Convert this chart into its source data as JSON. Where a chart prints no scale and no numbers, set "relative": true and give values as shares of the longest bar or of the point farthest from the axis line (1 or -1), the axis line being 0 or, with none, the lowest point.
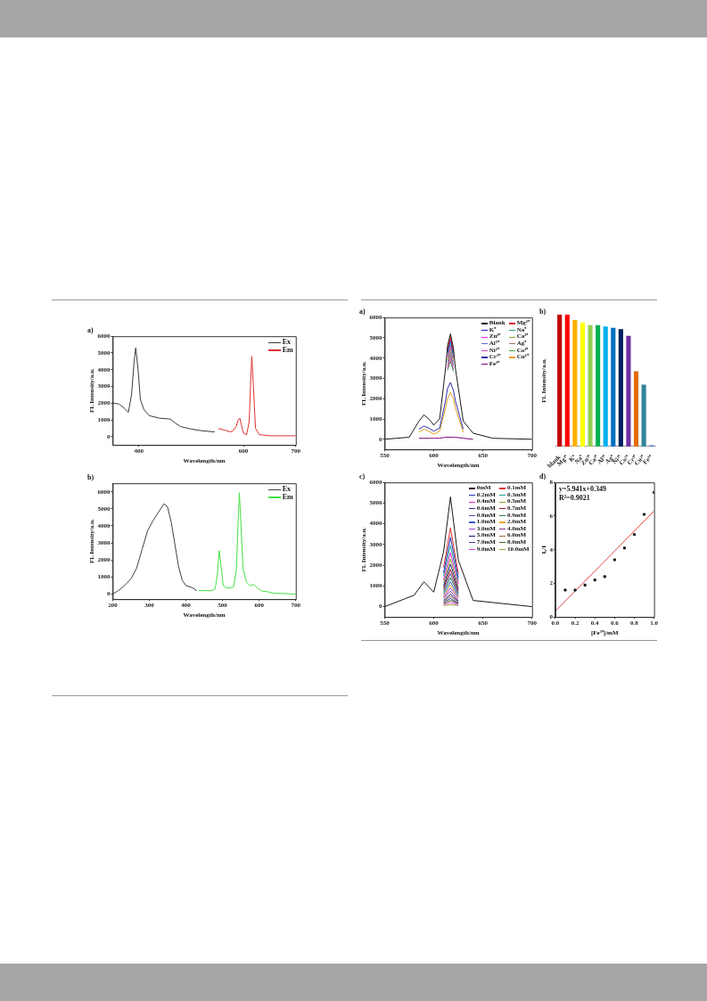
{
  "chart_data": [
    {
      "type": "line",
      "title": "a)",
      "xlabel": "Wavelength/nm",
      "ylabel": "FL Intensity/a.u.",
      "xlim": [
        350,
        700
      ],
      "xticks": [
        400,
        600,
        700
      ],
      "ylim": [
        -500,
        6000
      ],
      "yticks": [
        0,
        1000,
        2000,
        3000,
        4000,
        5000,
        6000
      ],
      "legend": "top right",
      "marker": "none",
      "series": [
        {
          "name": "Ex",
          "color": "#3a3a3a",
          "x": [
            350,
            362,
            372,
            380,
            386,
            391,
            394,
            398,
            403,
            410,
            420,
            440,
            460,
            470,
            480,
            500,
            520,
            545
          ],
          "values": [
            2000,
            1950,
            1700,
            1450,
            2500,
            4500,
            5300,
            4200,
            2200,
            1600,
            1250,
            1100,
            1050,
            800,
            600,
            450,
            350,
            280
          ]
        },
        {
          "name": "Em",
          "color": "#e03030",
          "x": [
            552,
            565,
            575,
            580,
            586,
            590,
            593,
            596,
            600,
            606,
            611,
            614,
            616,
            619,
            623,
            630,
            650,
            700
          ],
          "values": [
            480,
            380,
            280,
            350,
            600,
            1000,
            1100,
            700,
            200,
            120,
            900,
            3500,
            4800,
            3000,
            500,
            120,
            50,
            50
          ]
        }
      ]
    },
    {
      "type": "line",
      "title": "b)",
      "xlabel": "Wavelength/nm",
      "ylabel": "FL Intensity/a.u.",
      "xlim": [
        200,
        700
      ],
      "xticks": [
        200,
        300,
        400,
        500,
        600,
        700
      ],
      "ylim": [
        -300,
        6500
      ],
      "yticks": [
        0,
        1000,
        2000,
        3000,
        4000,
        5000,
        6000
      ],
      "legend": "top right",
      "marker": "none",
      "series": [
        {
          "name": "Ex",
          "color": "#404040",
          "x": [
            200,
            215,
            230,
            250,
            265,
            280,
            295,
            310,
            325,
            340,
            350,
            360,
            370,
            380,
            390,
            400,
            415,
            430
          ],
          "values": [
            0,
            200,
            450,
            900,
            1500,
            2600,
            3700,
            4300,
            4800,
            5300,
            5100,
            4200,
            2900,
            1600,
            800,
            500,
            400,
            200
          ]
        },
        {
          "name": "Em",
          "color": "#44e044",
          "x": [
            435,
            470,
            480,
            486,
            491,
            496,
            502,
            510,
            530,
            538,
            543,
            546,
            550,
            556,
            565,
            575,
            585,
            595,
            610,
            620,
            640,
            700
          ],
          "values": [
            200,
            200,
            300,
            1200,
            2550,
            1600,
            500,
            350,
            400,
            1500,
            4500,
            5950,
            4200,
            1500,
            700,
            500,
            550,
            350,
            150,
            150,
            50,
            0
          ]
        }
      ]
    },
    {
      "type": "line",
      "title": "a)",
      "xlabel": "Wavelength/nm",
      "ylabel": "FL Intensity/a.u.",
      "xlim": [
        550,
        700
      ],
      "xticks": [
        550,
        600,
        650,
        700
      ],
      "ylim": [
        -500,
        6000
      ],
      "yticks": [
        0,
        1000,
        2000,
        3000,
        4000,
        5000,
        6000
      ],
      "legend": "top right",
      "marker": "none",
      "x": [
        550,
        575,
        585,
        590,
        595,
        600,
        606,
        612,
        614,
        617,
        620,
        622,
        630,
        640,
        660,
        700
      ],
      "series": [
        {
          "name": "Blank",
          "color": "#1a1a1a",
          "values": [
            0,
            100,
            900,
            1200,
            1000,
            700,
            1000,
            3500,
            4600,
            5200,
            4500,
            3500,
            900,
            300,
            50,
            0
          ]
        },
        {
          "name": "Mg²⁺",
          "color": "#e02020",
          "values": [
            null,
            null,
            null,
            null,
            null,
            null,
            null,
            null,
            4450,
            5050,
            4350,
            null,
            null,
            null,
            null,
            null
          ]
        },
        {
          "name": "K⁺",
          "color": "#2020c0",
          "values": [
            null,
            null,
            null,
            null,
            null,
            null,
            null,
            null,
            4300,
            4900,
            4250,
            null,
            null,
            null,
            null,
            null
          ]
        },
        {
          "name": "Na⁺",
          "color": "#20a090",
          "values": [
            null,
            null,
            null,
            null,
            null,
            null,
            null,
            null,
            4200,
            4750,
            4100,
            null,
            null,
            null,
            null,
            null
          ]
        },
        {
          "name": "Zn²⁺",
          "color": "#e020e0",
          "values": [
            null,
            null,
            null,
            null,
            null,
            null,
            null,
            null,
            4050,
            4600,
            4000,
            null,
            null,
            null,
            null,
            null
          ]
        },
        {
          "name": "Ca²⁺",
          "color": "#90a020",
          "values": [
            null,
            null,
            null,
            null,
            null,
            null,
            null,
            null,
            3900,
            4450,
            3850,
            null,
            null,
            null,
            null,
            null
          ]
        },
        {
          "name": "Al³⁺",
          "color": "#7070c8",
          "values": [
            null,
            null,
            null,
            null,
            null,
            null,
            null,
            null,
            3800,
            4300,
            3700,
            null,
            null,
            null,
            null,
            null
          ]
        },
        {
          "name": "Ag⁺",
          "color": "#a07070",
          "values": [
            null,
            null,
            null,
            null,
            null,
            null,
            null,
            null,
            3650,
            4150,
            3600,
            null,
            null,
            null,
            null,
            null
          ]
        },
        {
          "name": "Ni²⁺",
          "color": "#d040c0",
          "values": [
            null,
            null,
            null,
            null,
            null,
            null,
            null,
            null,
            3500,
            4000,
            3450,
            null,
            null,
            null,
            null,
            null
          ]
        },
        {
          "name": "Co²⁺",
          "color": "#30a040",
          "values": [
            null,
            null,
            null,
            null,
            null,
            null,
            null,
            null,
            3400,
            3850,
            3350,
            null,
            null,
            null,
            null,
            null
          ]
        },
        {
          "name": "Cr³⁺",
          "color": "#3030b0",
          "values": [
            null,
            null,
            500,
            650,
            550,
            400,
            550,
            1900,
            2500,
            2800,
            2400,
            1900,
            500,
            null,
            null,
            null
          ]
        },
        {
          "name": "Cu²⁺",
          "color": "#e0a020",
          "values": [
            null,
            null,
            350,
            500,
            400,
            250,
            400,
            1550,
            2000,
            2300,
            2000,
            1550,
            350,
            null,
            null,
            null
          ]
        },
        {
          "name": "Fe³⁺",
          "color": "#800080",
          "values": [
            null,
            null,
            50,
            50,
            50,
            50,
            50,
            100,
            100,
            100,
            100,
            100,
            50,
            0,
            null,
            null
          ]
        }
      ]
    },
    {
      "type": "bar",
      "title": "b)",
      "ylabel": "FL Intensity/a.u.",
      "relative": true,
      "categories": [
        "blank",
        "Mg²⁺",
        "K⁺",
        "Na⁺",
        "Zn²⁺",
        "Ca²⁺",
        "Al³⁺",
        "Ag⁺",
        "Ni²⁺",
        "Co²⁺",
        "Cr³⁺",
        "Cu²⁺",
        "Fe³⁺"
      ],
      "values": [
        1,
        1,
        0.96,
        0.94,
        0.92,
        0.92,
        0.91,
        0.9,
        0.89,
        0.84,
        0.57,
        0.47,
        0.01
      ],
      "colors": [
        "#c00000",
        "#ff0000",
        "#ffb000",
        "#ffff00",
        "#92d050",
        "#00b050",
        "#00b0f0",
        "#0070c0",
        "#002060",
        "#7030a0",
        "#e46c0a",
        "#31859c",
        "#4f81bd"
      ]
    },
    {
      "type": "line",
      "title": "c)",
      "xlabel": "Wavelength/nm",
      "ylabel": "FL Intensity/a.u.",
      "xlim": [
        550,
        700
      ],
      "xticks": [
        550,
        600,
        650,
        700
      ],
      "ylim": [
        -500,
        6000
      ],
      "yticks": [
        0,
        1000,
        2000,
        3000,
        4000,
        5000,
        6000
      ],
      "legend": "top right",
      "marker": "none",
      "x": [
        550,
        580,
        590,
        600,
        610,
        617,
        625,
        640,
        700
      ],
      "series": [
        {
          "name": "0mM",
          "color": "#1a1a1a",
          "values": [
            0,
            550,
            1200,
            700,
            2650,
            5300,
            2250,
            300,
            0
          ]
        },
        {
          "name": "0.1mM",
          "color": "#e03030",
          "values": [
            null,
            null,
            null,
            null,
            1900,
            3800,
            1600,
            null,
            null
          ]
        },
        {
          "name": "0.2mM",
          "color": "#2030c0",
          "values": [
            null,
            null,
            null,
            null,
            1650,
            3350,
            1400,
            null,
            null
          ]
        },
        {
          "name": "0.3mM",
          "color": "#20a090",
          "values": [
            null,
            null,
            null,
            null,
            1500,
            2950,
            1250,
            null,
            null
          ]
        },
        {
          "name": "0.4mM",
          "color": "#e020e0",
          "values": [
            null,
            null,
            null,
            null,
            1300,
            2600,
            1100,
            null,
            null
          ]
        },
        {
          "name": "0.5mM",
          "color": "#90a020",
          "values": [
            null,
            null,
            null,
            null,
            1150,
            2300,
            950,
            null,
            null
          ]
        },
        {
          "name": "0.6mM",
          "color": "#202090",
          "values": [
            null,
            null,
            null,
            null,
            1000,
            2050,
            850,
            null,
            null
          ]
        },
        {
          "name": "0.7mM",
          "color": "#902020",
          "values": [
            null,
            null,
            null,
            null,
            900,
            1800,
            750,
            null,
            null
          ]
        },
        {
          "name": "0.8mM",
          "color": "#7040a0",
          "values": [
            null,
            null,
            null,
            null,
            800,
            1600,
            650,
            null,
            null
          ]
        },
        {
          "name": "0.9mM",
          "color": "#208040",
          "values": [
            null,
            null,
            null,
            null,
            700,
            1400,
            600,
            null,
            null
          ]
        },
        {
          "name": "1.0mM",
          "color": "#3060d0",
          "values": [
            null,
            null,
            null,
            null,
            600,
            1200,
            500,
            null,
            null
          ]
        },
        {
          "name": "2.0mM",
          "color": "#f0a030",
          "values": [
            null,
            null,
            null,
            null,
            500,
            1050,
            450,
            null,
            null
          ]
        },
        {
          "name": "3.0mM",
          "color": "#a040e0",
          "values": [
            null,
            null,
            null,
            null,
            450,
            900,
            400,
            null,
            null
          ]
        },
        {
          "name": "4.0mM",
          "color": "#803090",
          "values": [
            null,
            null,
            null,
            null,
            400,
            750,
            300,
            null,
            null
          ]
        },
        {
          "name": "5.0mM",
          "color": "#101060",
          "values": [
            null,
            null,
            null,
            null,
            300,
            600,
            250,
            null,
            null
          ]
        },
        {
          "name": "6.0mM",
          "color": "#a06040",
          "values": [
            null,
            null,
            null,
            null,
            250,
            500,
            200,
            null,
            null
          ]
        },
        {
          "name": "7.0mM",
          "color": "#3040a0",
          "values": [
            null,
            null,
            null,
            null,
            200,
            400,
            150,
            null,
            null
          ]
        },
        {
          "name": "8.0mM",
          "color": "#406020",
          "values": [
            null,
            null,
            null,
            null,
            150,
            300,
            150,
            null,
            null
          ]
        },
        {
          "name": "9.0mM",
          "color": "#e040e0",
          "values": [
            null,
            null,
            null,
            null,
            100,
            200,
            100,
            null,
            null
          ]
        },
        {
          "name": "10.0mM",
          "color": "#a0a030",
          "values": [
            null,
            null,
            null,
            null,
            50,
            100,
            50,
            null,
            null
          ]
        }
      ]
    },
    {
      "type": "scatter",
      "title": "d)",
      "xlabel": "[Fe³⁺]/mM",
      "ylabel": "I₀/I",
      "xlim": [
        0,
        1
      ],
      "xticks": [
        {
          "value": 0,
          "label": "0.0"
        },
        {
          "value": 0.2,
          "label": "0.2"
        },
        {
          "value": 0.4,
          "label": "0.4"
        },
        {
          "value": 0.6,
          "label": "0.6"
        },
        {
          "value": 0.8,
          "label": "0.8"
        },
        {
          "value": 1,
          "label": "1.0"
        }
      ],
      "ylim": [
        0,
        8
      ],
      "yticks": [
        0,
        2,
        4,
        6,
        8
      ],
      "marker": "square",
      "annotations": [
        "y=5.941x+0.349",
        "R²=0.9021"
      ],
      "series": [
        {
          "color": "#1a1a1a",
          "x": [
            0.1,
            0.2,
            0.3,
            0.4,
            0.5,
            0.6,
            0.7,
            0.8,
            0.9,
            1.0
          ],
          "values": [
            1.6,
            1.6,
            1.9,
            2.2,
            2.4,
            3.4,
            4.1,
            4.9,
            6.1,
            7.4
          ]
        },
        {
          "type": "line",
          "marker": "none",
          "color": "#e04040",
          "x": [
            0,
            1
          ],
          "values": [
            0.35,
            6.3
          ]
        }
      ]
    }
  ]
}
